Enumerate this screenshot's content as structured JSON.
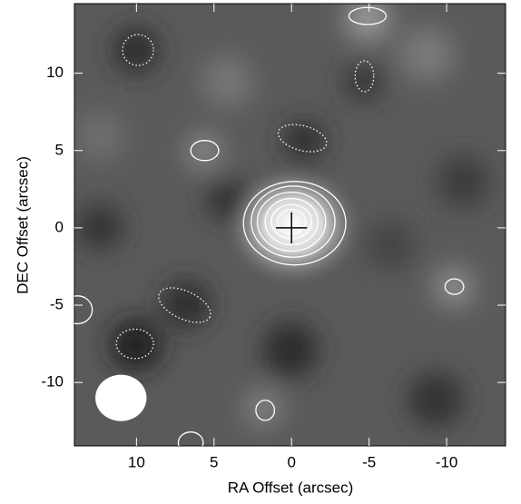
{
  "chart_data": {
    "type": "contour",
    "xlabel": "RA Offset (arcsec)",
    "ylabel": "DEC Offset (arcsec)",
    "xlim": [
      14,
      -13.8
    ],
    "ylim": [
      -14.1,
      14.5
    ],
    "xticks": [
      10,
      5,
      0,
      -5,
      -10
    ],
    "yticks": [
      -10,
      -5,
      0,
      5,
      10
    ],
    "contour_color": "#ffffff",
    "contours": [
      {
        "x": -0.2,
        "y": 0.3,
        "rx": 3.3,
        "ry": 2.7,
        "angle": 0,
        "style": "solid"
      },
      {
        "x": -0.1,
        "y": 0.4,
        "rx": 2.7,
        "ry": 2.3,
        "angle": 0,
        "style": "solid"
      },
      {
        "x": 0,
        "y": 0.4,
        "rx": 2.2,
        "ry": 1.9,
        "angle": 0,
        "style": "solid"
      },
      {
        "x": 0,
        "y": 0.4,
        "rx": 1.7,
        "ry": 1.5,
        "angle": 0,
        "style": "solid"
      },
      {
        "x": 0,
        "y": 0.4,
        "rx": 1.3,
        "ry": 1.1,
        "angle": 0,
        "style": "solid"
      },
      {
        "x": 0,
        "y": 0.4,
        "rx": 0.9,
        "ry": 0.8,
        "angle": 0,
        "style": "solid"
      },
      {
        "x": 9.9,
        "y": 11.5,
        "rx": 1.0,
        "ry": 1.0,
        "angle": 0,
        "style": "dotted"
      },
      {
        "x": -4.9,
        "y": 13.7,
        "rx": 1.2,
        "ry": 0.55,
        "angle": 0,
        "style": "solid"
      },
      {
        "x": -4.7,
        "y": 9.8,
        "rx": 0.6,
        "ry": 1.0,
        "angle": 0,
        "style": "dotted"
      },
      {
        "x": -0.7,
        "y": 5.8,
        "rx": 1.6,
        "ry": 0.8,
        "angle": 15,
        "style": "dotted"
      },
      {
        "x": 5.6,
        "y": 5.0,
        "rx": 0.9,
        "ry": 0.65,
        "angle": 0,
        "style": "solid"
      },
      {
        "x": -10.5,
        "y": -3.8,
        "rx": 0.6,
        "ry": 0.5,
        "angle": 0,
        "style": "solid"
      },
      {
        "x": 6.9,
        "y": -5.0,
        "rx": 1.8,
        "ry": 0.9,
        "angle": 25,
        "style": "dotted"
      },
      {
        "x": 13.8,
        "y": -5.3,
        "rx": 0.95,
        "ry": 0.9,
        "angle": 0,
        "style": "solid"
      },
      {
        "x": 10.1,
        "y": -7.5,
        "rx": 1.2,
        "ry": 0.95,
        "angle": 0,
        "style": "dotted"
      },
      {
        "x": 1.7,
        "y": -11.8,
        "rx": 0.6,
        "ry": 0.65,
        "angle": 0,
        "style": "solid"
      },
      {
        "x": 6.5,
        "y": -13.9,
        "rx": 0.8,
        "ry": 0.7,
        "angle": 0,
        "style": "solid"
      }
    ],
    "beam": {
      "x": 11.0,
      "y": -11.0,
      "rx": 1.65,
      "ry": 1.5
    },
    "marker": {
      "x": 0,
      "y": 0,
      "size": 1.0
    }
  }
}
